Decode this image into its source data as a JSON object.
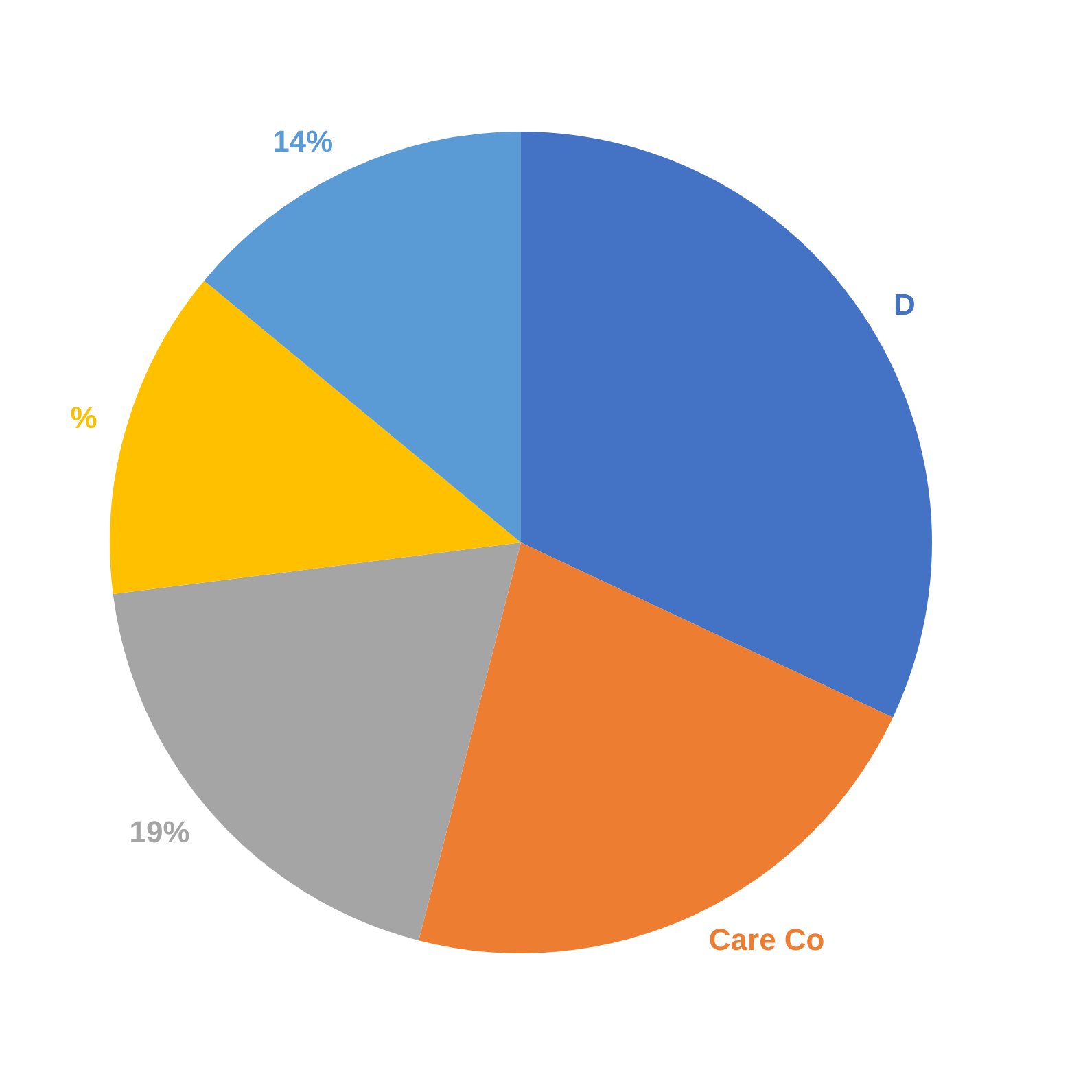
{
  "chart_data": {
    "type": "pie",
    "categories": [
      "D",
      "Care Co",
      null,
      null,
      null
    ],
    "values": [
      32,
      22,
      19,
      13,
      14
    ],
    "colors": [
      "#4472c4",
      "#ed7d31",
      "#a5a5a5",
      "#ffc000",
      "#5b9bd5"
    ],
    "value_labels": [
      null,
      null,
      "19%",
      "%",
      "14%"
    ],
    "legend": false
  }
}
